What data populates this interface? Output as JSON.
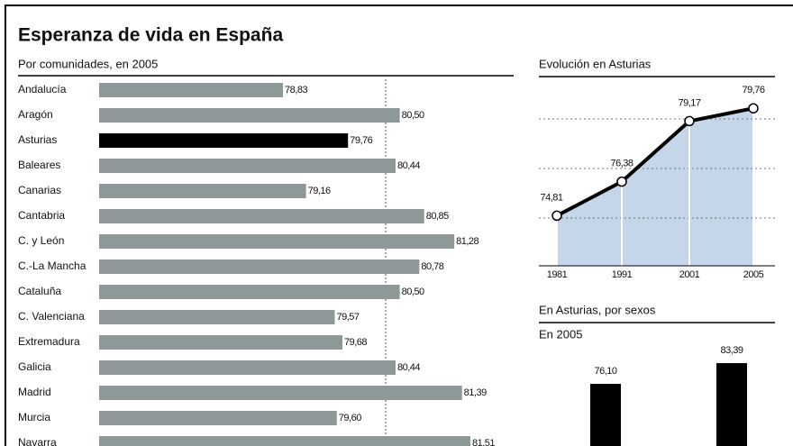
{
  "chart_data": [
    {
      "type": "bar",
      "orientation": "horizontal",
      "title": "Esperanza de vida en España",
      "subtitle": "Por comunidades, en 2005",
      "categories": [
        "Andalucía",
        "Aragón",
        "Asturias",
        "Baleares",
        "Canarias",
        "Cantabria",
        "C. y León",
        "C.-La Mancha",
        "Cataluña",
        "C. Valenciana",
        "Extremadura",
        "Galicia",
        "Madrid",
        "Murcia",
        "Navarra"
      ],
      "values": [
        78.83,
        80.5,
        79.76,
        80.44,
        79.16,
        80.85,
        81.28,
        80.78,
        80.5,
        79.57,
        79.68,
        80.44,
        81.39,
        79.6,
        81.51
      ],
      "value_labels": [
        "78,83",
        "80,50",
        "79,76",
        "80,44",
        "79,16",
        "80,85",
        "81,28",
        "80,78",
        "80,50",
        "79,57",
        "79,68",
        "80,44",
        "81,39",
        "79,60",
        "81,51"
      ],
      "colors": [
        "#8f9898",
        "#8f9898",
        "#000000",
        "#8f9898",
        "#8f9898",
        "#8f9898",
        "#8f9898",
        "#8f9898",
        "#8f9898",
        "#8f9898",
        "#8f9898",
        "#8f9898",
        "#8f9898",
        "#8f9898",
        "#8f9898"
      ],
      "xlim": [
        76.2,
        82.0
      ]
    },
    {
      "type": "area",
      "title": "Evolución en Asturias",
      "categories": [
        "1981",
        "1991",
        "2001",
        "2005"
      ],
      "values": [
        74.81,
        76.38,
        79.17,
        79.76
      ],
      "value_labels": [
        "74,81",
        "76,38",
        "79,17",
        "79,76"
      ],
      "color": "#c5d6ea",
      "line_color": "#000000",
      "ylim": [
        72.5,
        80.6
      ]
    },
    {
      "type": "bar",
      "orientation": "vertical",
      "title": "En Asturias, por sexos",
      "subtitle": "En 2005",
      "categories": [
        null,
        null
      ],
      "values": [
        76.1,
        83.39
      ],
      "value_labels": [
        "76,10",
        "83,39"
      ],
      "color": "#000000",
      "ylim": [
        54.2,
        90.7
      ]
    }
  ]
}
